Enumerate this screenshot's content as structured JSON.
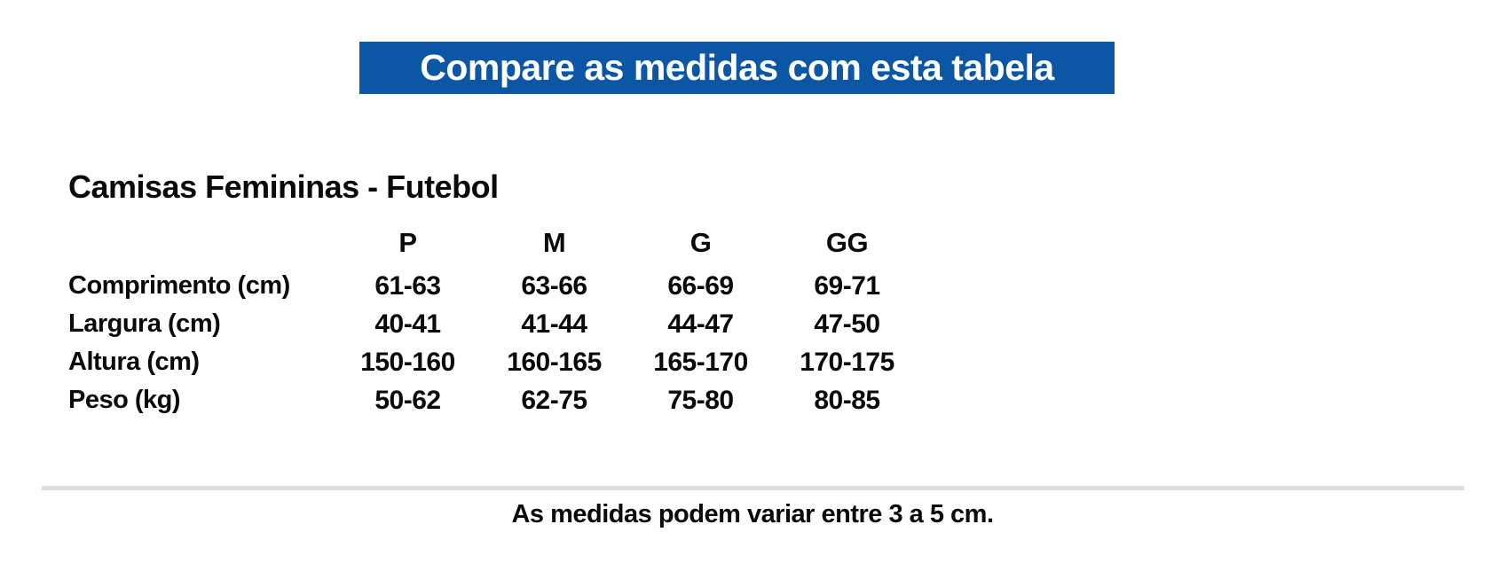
{
  "banner": {
    "label": "Compare as medidas com esta tabela",
    "bg_color": "#0b57a5",
    "text_color": "#ffffff"
  },
  "section": {
    "title": "Camisas Femininas - Futebol",
    "table": {
      "size_headers": [
        "P",
        "M",
        "G",
        "GG"
      ],
      "rows": [
        {
          "label": "Comprimento (cm)",
          "values": [
            "61-63",
            "63-66",
            "66-69",
            "69-71"
          ]
        },
        {
          "label": "Largura (cm)",
          "values": [
            "40-41",
            "41-44",
            "44-47",
            "47-50"
          ]
        },
        {
          "label": "Altura (cm)",
          "values": [
            "150-160",
            "160-165",
            "165-170",
            "170-175"
          ]
        },
        {
          "label": "Peso (kg)",
          "values": [
            "50-62",
            "62-75",
            "75-80",
            "80-85"
          ]
        }
      ]
    }
  },
  "footer": {
    "note": "As medidas podem variar entre 3 a 5 cm."
  }
}
